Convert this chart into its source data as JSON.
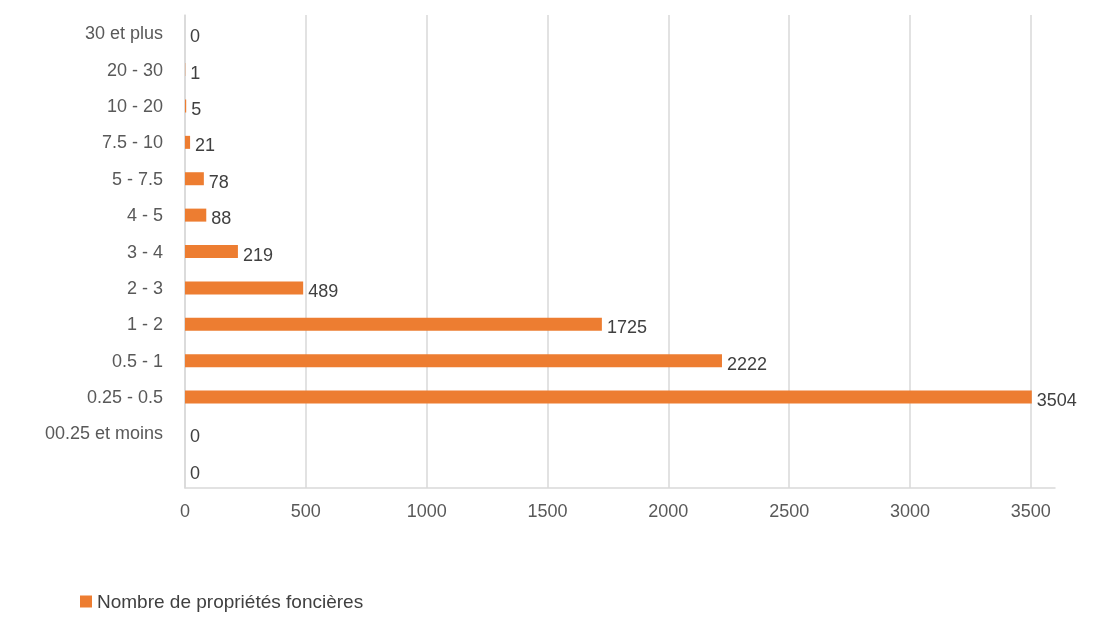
{
  "chart_data": {
    "type": "bar",
    "orientation": "horizontal",
    "categories": [
      "30 et plus",
      "20 - 30",
      "10 - 20",
      "7.5 - 10",
      "5 - 7.5",
      "4 - 5",
      "3 - 4",
      "2 - 3",
      "1 - 2",
      "0.5 - 1",
      "0.25 - 0.5",
      "00.25 et moins",
      null
    ],
    "series": [
      {
        "name": "Nombre de propriétés foncières",
        "color": "#ed7d31",
        "values": [
          0,
          1,
          5,
          21,
          78,
          88,
          219,
          489,
          1725,
          2222,
          3504,
          0,
          0
        ]
      }
    ],
    "xlim": [
      0,
      3600
    ],
    "xticks": [
      0,
      500,
      1000,
      1500,
      2000,
      2500,
      3000,
      3500
    ],
    "grid": "x",
    "legend": "bottom left",
    "data_labels": true
  }
}
